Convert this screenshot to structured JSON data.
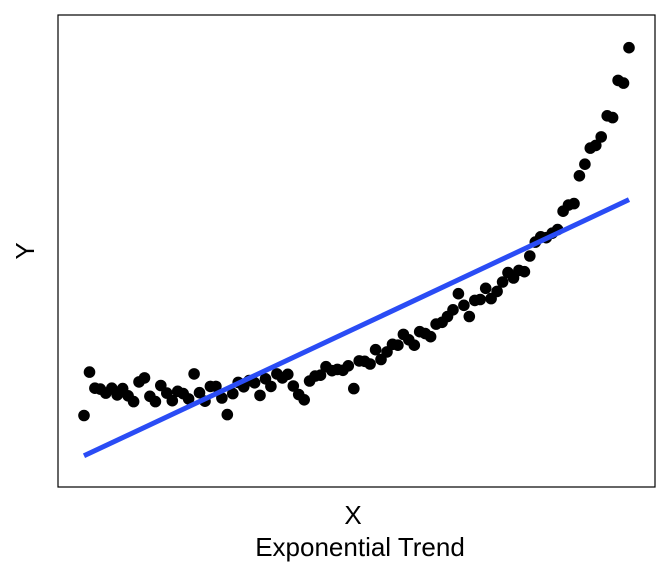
{
  "chart_data": {
    "type": "scatter",
    "title": "Exponential Trend",
    "xlabel": "X",
    "ylabel": "Y",
    "xlim": [
      0,
      1
    ],
    "ylim": [
      0,
      1
    ],
    "grid": false,
    "legend": "none",
    "colors": {
      "points": "#000000",
      "trend_line": "#2a4cf5",
      "frame": "#000000"
    },
    "points": {
      "x": [
        0.0,
        0.01,
        0.02,
        0.03,
        0.04,
        0.051,
        0.061,
        0.071,
        0.081,
        0.091,
        0.101,
        0.111,
        0.121,
        0.131,
        0.141,
        0.152,
        0.162,
        0.172,
        0.182,
        0.192,
        0.202,
        0.212,
        0.222,
        0.232,
        0.242,
        0.253,
        0.263,
        0.273,
        0.283,
        0.293,
        0.303,
        0.313,
        0.323,
        0.333,
        0.343,
        0.354,
        0.364,
        0.374,
        0.384,
        0.394,
        0.404,
        0.414,
        0.424,
        0.434,
        0.444,
        0.455,
        0.465,
        0.475,
        0.485,
        0.495,
        0.505,
        0.515,
        0.525,
        0.535,
        0.545,
        0.556,
        0.566,
        0.576,
        0.586,
        0.596,
        0.606,
        0.616,
        0.626,
        0.636,
        0.646,
        0.657,
        0.667,
        0.677,
        0.687,
        0.697,
        0.707,
        0.717,
        0.727,
        0.737,
        0.747,
        0.758,
        0.768,
        0.778,
        0.788,
        0.798,
        0.808,
        0.818,
        0.828,
        0.838,
        0.848,
        0.859,
        0.869,
        0.879,
        0.889,
        0.899,
        0.909,
        0.919,
        0.929,
        0.939,
        0.949,
        0.96,
        0.97,
        0.98,
        0.99,
        1.0
      ],
      "y": [
        0.135,
        0.232,
        0.196,
        0.194,
        0.185,
        0.196,
        0.181,
        0.195,
        0.179,
        0.166,
        0.21,
        0.219,
        0.178,
        0.166,
        0.202,
        0.185,
        0.168,
        0.189,
        0.184,
        0.172,
        0.228,
        0.186,
        0.167,
        0.2,
        0.2,
        0.174,
        0.137,
        0.184,
        0.209,
        0.199,
        0.213,
        0.208,
        0.18,
        0.217,
        0.2,
        0.228,
        0.219,
        0.227,
        0.201,
        0.182,
        0.17,
        0.212,
        0.223,
        0.225,
        0.244,
        0.235,
        0.238,
        0.236,
        0.246,
        0.195,
        0.257,
        0.256,
        0.25,
        0.282,
        0.26,
        0.277,
        0.294,
        0.292,
        0.316,
        0.304,
        0.292,
        0.322,
        0.318,
        0.311,
        0.339,
        0.343,
        0.356,
        0.371,
        0.407,
        0.381,
        0.356,
        0.392,
        0.394,
        0.419,
        0.396,
        0.412,
        0.433,
        0.454,
        0.442,
        0.459,
        0.456,
        0.491,
        0.522,
        0.534,
        0.532,
        0.542,
        0.55,
        0.591,
        0.605,
        0.608,
        0.67,
        0.696,
        0.732,
        0.738,
        0.757,
        0.804,
        0.8,
        0.883,
        0.877,
        0.956
      ]
    },
    "trend_line": {
      "x": [
        0,
        1
      ],
      "y": [
        0.045,
        0.617
      ]
    }
  }
}
